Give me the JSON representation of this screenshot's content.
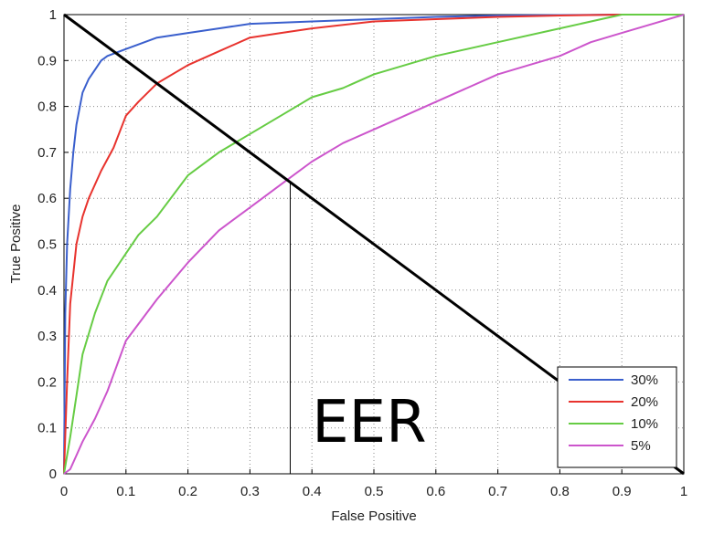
{
  "chart_data": {
    "type": "line",
    "title": "",
    "xlabel": "False Positive",
    "ylabel": "True Positive",
    "xlim": [
      0,
      1
    ],
    "ylim": [
      0,
      1
    ],
    "x_ticks": [
      "0",
      "0.1",
      "0.2",
      "0.3",
      "0.4",
      "0.5",
      "0.6",
      "0.7",
      "0.8",
      "0.9",
      "1"
    ],
    "y_ticks": [
      "0",
      "0.1",
      "0.2",
      "0.3",
      "0.4",
      "0.5",
      "0.6",
      "0.7",
      "0.8",
      "0.9",
      "1"
    ],
    "grid": true,
    "legend_position": "bottom-right",
    "series": [
      {
        "name": "30%",
        "color": "#3a5fcd",
        "x": [
          0,
          0.002,
          0.005,
          0.01,
          0.015,
          0.02,
          0.03,
          0.04,
          0.05,
          0.06,
          0.07,
          0.08,
          0.1,
          0.12,
          0.15,
          0.2,
          0.25,
          0.3,
          0.4,
          0.5,
          0.6,
          0.7,
          0.8,
          0.9,
          1
        ],
        "y": [
          0,
          0.35,
          0.5,
          0.62,
          0.7,
          0.76,
          0.83,
          0.86,
          0.88,
          0.9,
          0.91,
          0.915,
          0.925,
          0.935,
          0.95,
          0.96,
          0.97,
          0.98,
          0.985,
          0.99,
          0.995,
          0.998,
          0.999,
          1,
          1
        ]
      },
      {
        "name": "20%",
        "color": "#e8332e",
        "x": [
          0,
          0.005,
          0.01,
          0.02,
          0.03,
          0.04,
          0.05,
          0.06,
          0.08,
          0.1,
          0.12,
          0.15,
          0.2,
          0.25,
          0.3,
          0.35,
          0.4,
          0.5,
          0.6,
          0.7,
          0.8,
          0.9,
          1
        ],
        "y": [
          0,
          0.2,
          0.37,
          0.5,
          0.56,
          0.6,
          0.63,
          0.66,
          0.71,
          0.78,
          0.81,
          0.85,
          0.89,
          0.92,
          0.95,
          0.96,
          0.97,
          0.985,
          0.99,
          0.995,
          0.998,
          1,
          1
        ]
      },
      {
        "name": "10%",
        "color": "#66cc44",
        "x": [
          0,
          0.01,
          0.02,
          0.03,
          0.05,
          0.07,
          0.1,
          0.12,
          0.15,
          0.2,
          0.25,
          0.3,
          0.35,
          0.4,
          0.45,
          0.5,
          0.6,
          0.7,
          0.8,
          0.9,
          1
        ],
        "y": [
          0,
          0.08,
          0.17,
          0.26,
          0.35,
          0.42,
          0.48,
          0.52,
          0.56,
          0.65,
          0.7,
          0.74,
          0.78,
          0.82,
          0.84,
          0.87,
          0.91,
          0.94,
          0.97,
          1,
          1
        ]
      },
      {
        "name": "5%",
        "color": "#cc55cc",
        "x": [
          0,
          0.01,
          0.02,
          0.03,
          0.05,
          0.07,
          0.1,
          0.15,
          0.2,
          0.25,
          0.3,
          0.35,
          0.4,
          0.45,
          0.5,
          0.55,
          0.6,
          0.65,
          0.7,
          0.75,
          0.8,
          0.85,
          0.9,
          0.95,
          1
        ],
        "y": [
          0,
          0.01,
          0.04,
          0.07,
          0.12,
          0.18,
          0.29,
          0.38,
          0.46,
          0.53,
          0.58,
          0.63,
          0.68,
          0.72,
          0.75,
          0.78,
          0.81,
          0.84,
          0.87,
          0.89,
          0.91,
          0.94,
          0.96,
          0.98,
          1
        ]
      }
    ],
    "diagonal": {
      "x": [
        0,
        1
      ],
      "y": [
        1,
        0
      ],
      "color": "#000000"
    },
    "eer_marker": {
      "x": 0.365,
      "y": 0.635,
      "color": "#000000"
    },
    "annotation": {
      "text": "EER",
      "x": 0.4,
      "y": 0.07
    }
  }
}
